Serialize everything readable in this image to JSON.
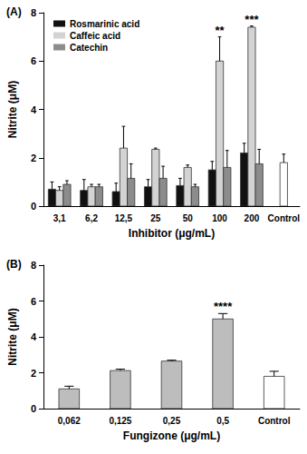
{
  "chart_data": [
    {
      "type": "bar",
      "title": "(A)",
      "x_label": "Inhibitor (μg/mL)",
      "y_label": "Nitrite (μM)",
      "categories": [
        "3,1",
        "6,2",
        "12,5",
        "25",
        "50",
        "100",
        "200",
        "Control"
      ],
      "series": [
        {
          "name": "Rosmarinic acid",
          "color": "#111111",
          "values": [
            0.7,
            0.65,
            0.6,
            0.8,
            0.85,
            1.5,
            2.2,
            null
          ],
          "errors": [
            0.3,
            0.45,
            0.35,
            0.3,
            0.3,
            0.35,
            0.4,
            null
          ]
        },
        {
          "name": "Caffeic acid",
          "color": "#d3d3d3",
          "values": [
            0.65,
            0.8,
            2.4,
            2.35,
            1.6,
            6.0,
            7.4,
            null
          ],
          "errors": [
            0.15,
            0.1,
            0.9,
            0.05,
            0.1,
            1.0,
            0.05,
            null
          ]
        },
        {
          "name": "Catechin",
          "color": "#8c8c8c",
          "values": [
            0.9,
            0.8,
            1.15,
            1.15,
            0.8,
            1.6,
            1.75,
            null
          ],
          "errors": [
            0.15,
            0.1,
            0.6,
            0.5,
            0.1,
            0.7,
            0.6,
            null
          ]
        },
        {
          "color": "#ffffff",
          "values": [
            null,
            null,
            null,
            null,
            null,
            null,
            null,
            1.8
          ],
          "errors": [
            null,
            null,
            null,
            null,
            null,
            null,
            null,
            0.35
          ]
        }
      ],
      "annotations": [
        {
          "category": "100",
          "text": "**"
        },
        {
          "category": "200",
          "text": "***"
        }
      ],
      "ylim": [
        0,
        8
      ],
      "yticks": [
        0,
        2,
        4,
        6,
        8
      ],
      "grid": false,
      "legend": "upper left"
    },
    {
      "type": "bar",
      "title": "(B)",
      "x_label": "Fungizone (μg/mL)",
      "y_label": "Nitrite (μM)",
      "categories": [
        "0,062",
        "0,125",
        "0,25",
        "0,5",
        "Control"
      ],
      "series": [
        {
          "color": "#bdbdbd",
          "values": [
            1.1,
            2.12,
            2.65,
            5.0,
            null
          ],
          "errors": [
            0.15,
            0.08,
            0.05,
            0.3,
            null
          ]
        },
        {
          "color": "#ffffff",
          "values": [
            null,
            null,
            null,
            null,
            1.8
          ],
          "errors": [
            null,
            null,
            null,
            null,
            0.28
          ]
        }
      ],
      "annotations": [
        {
          "category": "0,5",
          "text": "****"
        }
      ],
      "ylim": [
        0,
        8
      ],
      "yticks": [
        0,
        2,
        4,
        6,
        8
      ],
      "grid": false
    }
  ]
}
